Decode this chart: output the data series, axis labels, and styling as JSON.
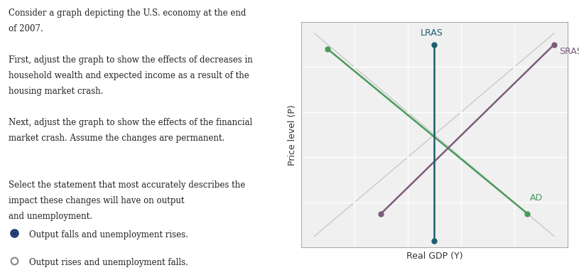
{
  "figsize": [
    8.15,
    3.87
  ],
  "dpi": 100,
  "fig_bg": "#ffffff",
  "chart_bg": "#f0f0f0",
  "grid_color": "#ffffff",
  "xlim": [
    0,
    10
  ],
  "ylim": [
    0,
    10
  ],
  "lras_x": 5.0,
  "lras_y0": 0.3,
  "lras_y1": 9.0,
  "lras_color": "#1a5f6e",
  "lras_label": "LRAS",
  "sras_x0": 3.0,
  "sras_y0": 1.5,
  "sras_x1": 9.5,
  "sras_y1": 9.0,
  "sras_color": "#7b5c7b",
  "sras_label": "SRAS",
  "ad_x0": 1.0,
  "ad_y0": 8.8,
  "ad_x1": 8.5,
  "ad_y1": 1.5,
  "ad_color": "#4a9a5a",
  "ad_label": "AD",
  "ghost_line1_x0": 0.5,
  "ghost_line1_y0": 9.5,
  "ghost_line1_x1": 9.5,
  "ghost_line1_y1": 0.5,
  "ghost_line2_x0": 0.5,
  "ghost_line2_y0": 0.5,
  "ghost_line2_x1": 9.5,
  "ghost_line2_y1": 9.5,
  "ghost_color": "#c8c8c8",
  "marker_size": 5,
  "linewidth": 1.8,
  "xlabel": "Real GDP (Y)",
  "ylabel": "Price level (P)",
  "text_lines": [
    "Consider a graph depicting the U.S. economy at the end",
    "of 2007.",
    "",
    "First, adjust the graph to show the effects of decreases in",
    "household wealth and expected income as a result of the",
    "housing market crash.",
    "",
    "Next, adjust the graph to show the effects of the financial",
    "market crash. Assume the changes are permanent.",
    "",
    "",
    "Select the statement that most accurately describes the",
    "impact these changes will have on output",
    "and unemployment."
  ],
  "option1": "Output falls and unemployment rises.",
  "option2": "Output rises and unemployment falls.",
  "text_fontsize": 8.5,
  "text_color": "#222222"
}
